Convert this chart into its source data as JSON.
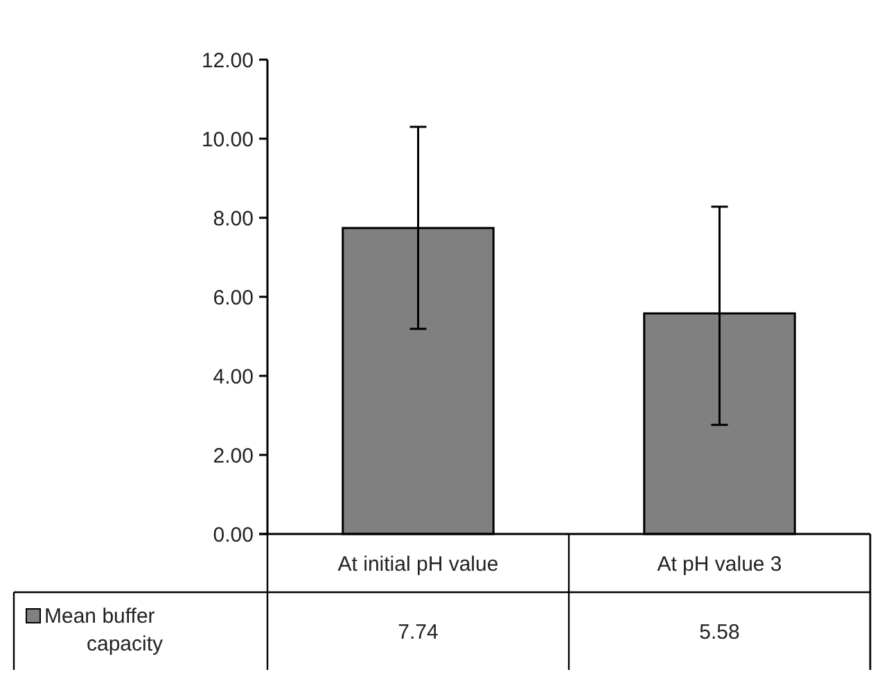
{
  "chart_data": {
    "type": "bar",
    "categories": [
      "At initial pH value",
      "At pH value 3"
    ],
    "series": [
      {
        "name": "Mean buffer capacity",
        "color": "#808080",
        "values": [
          7.74,
          5.58
        ],
        "errors": [
          [
            5.19,
            10.3
          ],
          [
            2.76,
            8.28
          ]
        ]
      }
    ],
    "ylim": [
      0,
      12
    ],
    "yticks": [
      {
        "value": 0,
        "label": "0.00"
      },
      {
        "value": 2,
        "label": "2.00"
      },
      {
        "value": 4,
        "label": "4.00"
      },
      {
        "value": 6,
        "label": "6.00"
      },
      {
        "value": 8,
        "label": "8.00"
      },
      {
        "value": 10,
        "label": "10.00"
      },
      {
        "value": 12,
        "label": "12.00"
      }
    ],
    "data_labels": true,
    "legend": "bottom",
    "grid": false
  }
}
